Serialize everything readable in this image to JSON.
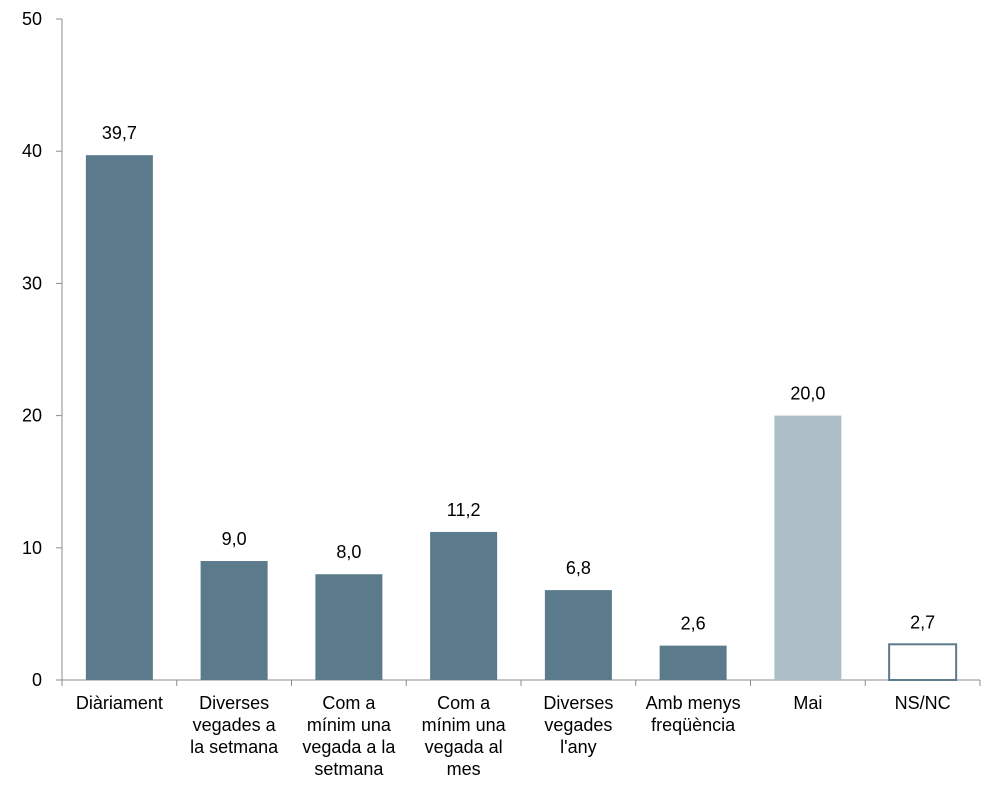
{
  "chart_data": {
    "type": "bar",
    "title": "",
    "xlabel": "",
    "ylabel": "",
    "ylim": [
      0,
      50
    ],
    "yticks": [
      "0",
      "10",
      "20",
      "30",
      "40",
      "50"
    ],
    "grid": false,
    "legend": "none",
    "categories": [
      [
        "Diàriament"
      ],
      [
        "Diverses",
        "vegades a",
        "la setmana"
      ],
      [
        "Com a",
        "mínim una",
        "vegada a la",
        "setmana"
      ],
      [
        "Com a",
        "mínim una",
        "vegada al",
        "mes"
      ],
      [
        "Diverses",
        "vegades",
        "l'any"
      ],
      [
        "Amb menys",
        "freqüència"
      ],
      [
        "Mai"
      ],
      [
        "NS/NC"
      ]
    ],
    "values": [
      39.7,
      9.0,
      8.0,
      11.2,
      6.8,
      2.6,
      20.0,
      2.7
    ],
    "value_labels": [
      "39,7",
      "9,0",
      "8,0",
      "11,2",
      "6,8",
      "2,6",
      "20,0",
      "2,7"
    ],
    "colors": {
      "primary": "#5b7b8c",
      "light": "#aebec7",
      "outline": "#5b7b8c",
      "outline_fill": "#ffffff",
      "axis": "#8c8c8c"
    },
    "bar_styles": [
      "primary",
      "primary",
      "primary",
      "primary",
      "primary",
      "primary",
      "light",
      "outline"
    ]
  }
}
